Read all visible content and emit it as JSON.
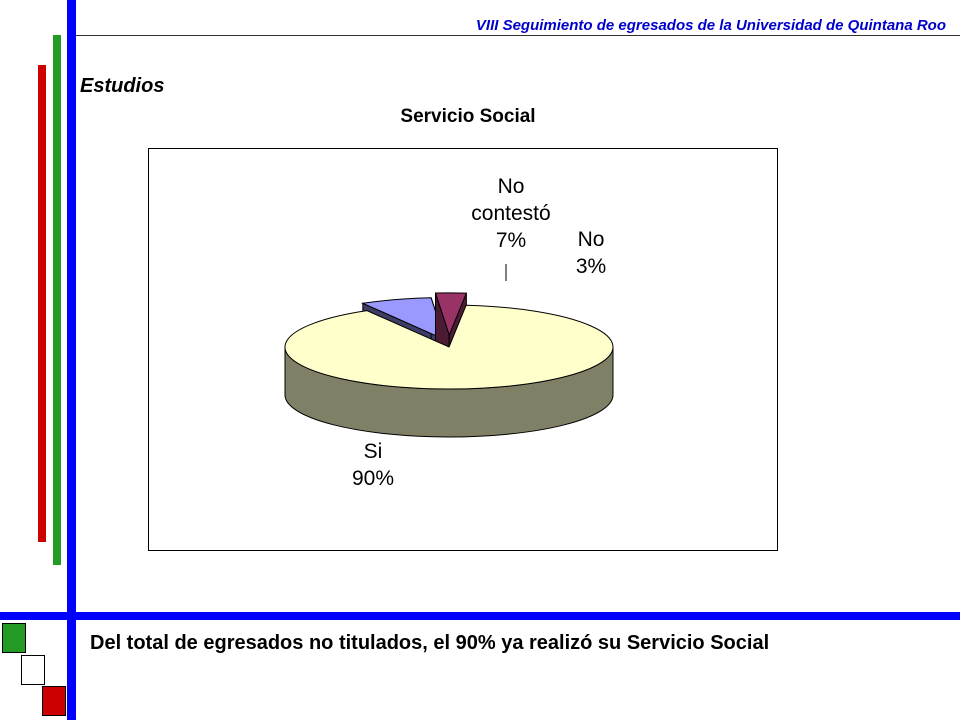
{
  "header": {
    "title": "VIII Seguimiento de egresados de la Universidad de Quintana Roo"
  },
  "section": {
    "title": "Estudios"
  },
  "caption": {
    "text": "Del total de egresados no titulados, el 90% ya realizó su Servicio Social"
  },
  "colors": {
    "blue_bar": "#0000ff",
    "green_bar": "#239a23",
    "red_bar": "#cc0000"
  },
  "chart_data": {
    "type": "pie",
    "title": "Servicio Social",
    "slices": [
      {
        "label": "Si",
        "value": 90,
        "display": "90%",
        "color": "#ffffcc",
        "side_color": "#808066"
      },
      {
        "label": "No contestó",
        "value": 7,
        "display": "7%",
        "color": "#9999ff",
        "side_color": "#3d3d66"
      },
      {
        "label": "No",
        "value": 3,
        "display": "3%",
        "color": "#993366",
        "side_color": "#4d1a33"
      }
    ]
  }
}
